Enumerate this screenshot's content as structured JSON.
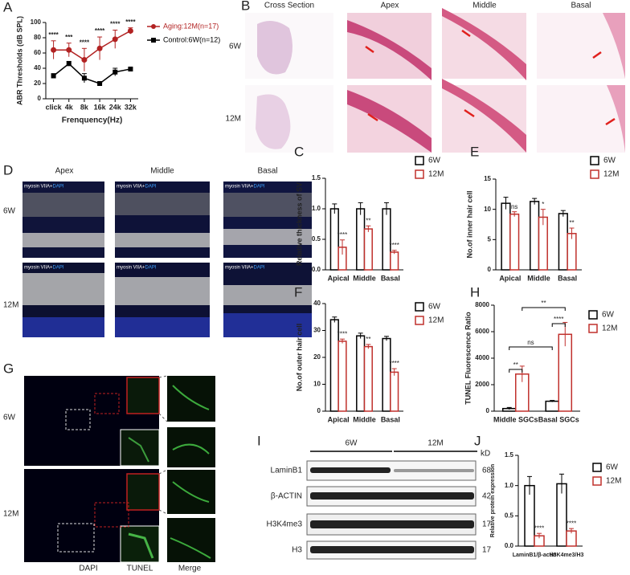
{
  "chart_data": [
    {
      "type": "line",
      "label": "A",
      "ylabel": "ABR Thresholds (dB SPL)",
      "xlabel": "Frenquency(Hz)",
      "categories": [
        "click",
        "4k",
        "8k",
        "16k",
        "24k",
        "32k"
      ],
      "series": [
        {
          "name": "Aging:12M(n=17)",
          "color": "#b22222",
          "marker": "circle",
          "values": [
            64,
            64,
            51,
            66,
            78,
            89
          ],
          "errors": [
            12,
            9,
            15,
            15,
            12,
            4
          ]
        },
        {
          "name": "Control:6W(n=12)",
          "color": "#000000",
          "marker": "square",
          "values": [
            30,
            46,
            27,
            20,
            35,
            39
          ],
          "errors": [
            3,
            3,
            6,
            1,
            5,
            1
          ]
        }
      ],
      "annotations": [
        "****",
        "***",
        "****",
        "****",
        "****",
        "****"
      ],
      "ylim": [
        0,
        100
      ],
      "yticks": [
        0,
        20,
        40,
        60,
        80,
        100
      ]
    },
    {
      "type": "bar",
      "label": "C",
      "ylabel": "Relative thickness of SV",
      "categories": [
        "Apical",
        "Middle",
        "Basal"
      ],
      "series": [
        {
          "name": "6W",
          "color": "#000000",
          "values": [
            1.0,
            1.0,
            1.0
          ],
          "errors": [
            0.08,
            0.1,
            0.1
          ]
        },
        {
          "name": "12M",
          "color": "#c0302c",
          "values": [
            0.37,
            0.67,
            0.29
          ],
          "errors": [
            0.12,
            0.05,
            0.03
          ]
        }
      ],
      "annotations": [
        "****",
        "**",
        "****"
      ],
      "ylim": [
        0,
        1.5
      ],
      "yticks": [
        {
          "value": 0,
          "label": "0.0"
        },
        {
          "value": 0.5,
          "label": "0.5"
        },
        {
          "value": 1,
          "label": "1.0"
        },
        {
          "value": 1.5,
          "label": "1.5"
        }
      ]
    },
    {
      "type": "bar",
      "label": "E",
      "ylabel": "No.of inner hair cell",
      "categories": [
        "Apical",
        "Middle",
        "Basal"
      ],
      "series": [
        {
          "name": "6W",
          "color": "#000000",
          "values": [
            11,
            11.3,
            9.3
          ],
          "errors": [
            1,
            0.5,
            0.5
          ]
        },
        {
          "name": "12M",
          "color": "#c0302c",
          "values": [
            9.2,
            8.7,
            6
          ],
          "errors": [
            0.4,
            1.3,
            0.9
          ]
        }
      ],
      "annotations": [
        "ns",
        "*",
        "**"
      ],
      "ylim": [
        0,
        15
      ],
      "yticks": [
        0,
        5,
        10,
        15
      ]
    },
    {
      "type": "bar",
      "label": "F",
      "ylabel": "No.of outer hair cell",
      "categories": [
        "Apical",
        "Middle",
        "Basal"
      ],
      "series": [
        {
          "name": "6W",
          "color": "#000000",
          "values": [
            34,
            28,
            27
          ],
          "errors": [
            1,
            1,
            0.8
          ]
        },
        {
          "name": "12M",
          "color": "#c0302c",
          "values": [
            26,
            24,
            14.5
          ],
          "errors": [
            0.8,
            0.8,
            1.3
          ]
        }
      ],
      "annotations": [
        "****",
        "**",
        "****"
      ],
      "ylim": [
        0,
        40
      ],
      "yticks": [
        0,
        10,
        20,
        30,
        40
      ]
    },
    {
      "type": "bar",
      "label": "H",
      "ylabel": "TUNEL Fluorescence Ratio",
      "categories": [
        "Middle SGCs",
        "Basal SGCs"
      ],
      "series": [
        {
          "name": "6W",
          "color": "#000000",
          "values": [
            200,
            750
          ],
          "errors": [
            80,
            60
          ]
        },
        {
          "name": "12M",
          "color": "#c0302c",
          "values": [
            2800,
            5800
          ],
          "errors": [
            600,
            900
          ]
        }
      ],
      "annotations": [
        "**",
        "****",
        "ns",
        "**"
      ],
      "ylim": [
        0,
        8000
      ],
      "yticks": [
        0,
        2000,
        4000,
        6000,
        8000
      ]
    },
    {
      "type": "bar",
      "label": "J",
      "ylabel": "Relative protein expression",
      "categories": [
        "LaminB1/β-actin",
        "H3K4me3/H3"
      ],
      "series": [
        {
          "name": "6W",
          "color": "#000000",
          "values": [
            1.0,
            1.03
          ],
          "errors": [
            0.15,
            0.16
          ]
        },
        {
          "name": "12M",
          "color": "#c0302c",
          "values": [
            0.17,
            0.25
          ],
          "errors": [
            0.04,
            0.04
          ]
        }
      ],
      "annotations": [
        "****",
        "****"
      ],
      "ylim": [
        0,
        1.5
      ],
      "yticks": [
        {
          "value": 0,
          "label": "0.0"
        },
        {
          "value": 0.5,
          "label": "0.5"
        },
        {
          "value": 1,
          "label": "1.0"
        },
        {
          "value": 1.5,
          "label": "1.5"
        }
      ]
    }
  ],
  "figure_b": {
    "label": "B",
    "columns": [
      "Cross Section",
      "Apex",
      "Middle",
      "Basal"
    ],
    "rows": [
      "6W",
      "12M"
    ]
  },
  "figure_d": {
    "label": "D",
    "columns": [
      "Apex",
      "Middle",
      "Basal"
    ],
    "rows": [
      "6W",
      "12M"
    ],
    "stain": "myosin VIIA+",
    "stain_dapi": "DAPI"
  },
  "figure_g": {
    "label": "G",
    "rows": [
      "6W",
      "12M"
    ],
    "columns": [
      "DAPI",
      "TUNEL",
      "Merge"
    ]
  },
  "figure_i": {
    "label": "I",
    "groups": [
      "6W",
      "12M"
    ],
    "unit": "kD",
    "rows": [
      {
        "name": "LaminB1",
        "kd": "68"
      },
      {
        "name": "β-ACTIN",
        "kd": "42"
      },
      {
        "name": "H3K4me3",
        "kd": "17"
      },
      {
        "name": "H3",
        "kd": "17"
      }
    ]
  }
}
